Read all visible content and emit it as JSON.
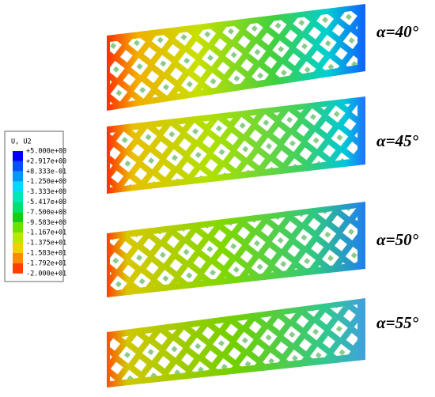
{
  "legend": {
    "title": "U, U2",
    "labels": [
      "+5.000e+00",
      "+2.917e+00",
      "+8.333e-01",
      "-1.250e+00",
      "-3.333e+00",
      "-5.417e+00",
      "-7.500e+00",
      "-9.583e+00",
      "-1.167e+01",
      "-1.375e+01",
      "-1.583e+01",
      "-1.792e+01",
      "-2.000e+01"
    ],
    "colors": [
      "#0000ff",
      "#0050ff",
      "#0098ff",
      "#00d8ff",
      "#00e8b8",
      "#00e070",
      "#10d010",
      "#70e000",
      "#b8e800",
      "#f0d000",
      "#ff8c00",
      "#ff4000",
      "#ff0000"
    ]
  },
  "panels": [
    {
      "label": "α=40°"
    },
    {
      "label": "α=45°"
    },
    {
      "label": "α=50°"
    },
    {
      "label": "α=55°"
    }
  ]
}
